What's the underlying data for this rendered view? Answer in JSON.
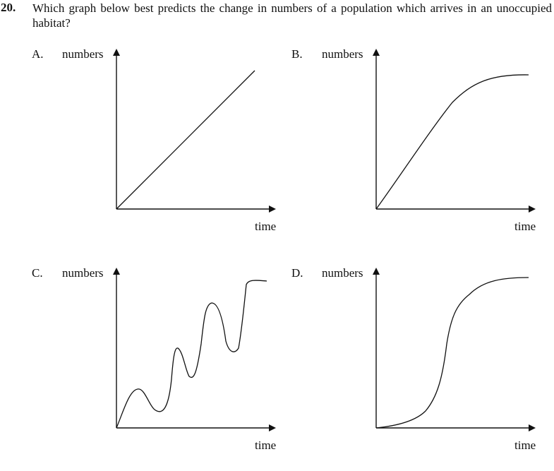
{
  "question": {
    "number": "20.",
    "text": "Which graph below best predicts the change in numbers of a population which arrives in an unoccupied habitat?"
  },
  "graphs": [
    {
      "letter": "A.",
      "y_axis_label": "numbers",
      "x_axis_label": "time",
      "curve": "linear"
    },
    {
      "letter": "B.",
      "y_axis_label": "numbers",
      "x_axis_label": "time",
      "curve": "rise-then-level-off"
    },
    {
      "letter": "C.",
      "y_axis_label": "numbers",
      "x_axis_label": "time",
      "curve": "oscillating-increase"
    },
    {
      "letter": "D.",
      "y_axis_label": "numbers",
      "x_axis_label": "time",
      "curve": "sigmoid"
    }
  ]
}
